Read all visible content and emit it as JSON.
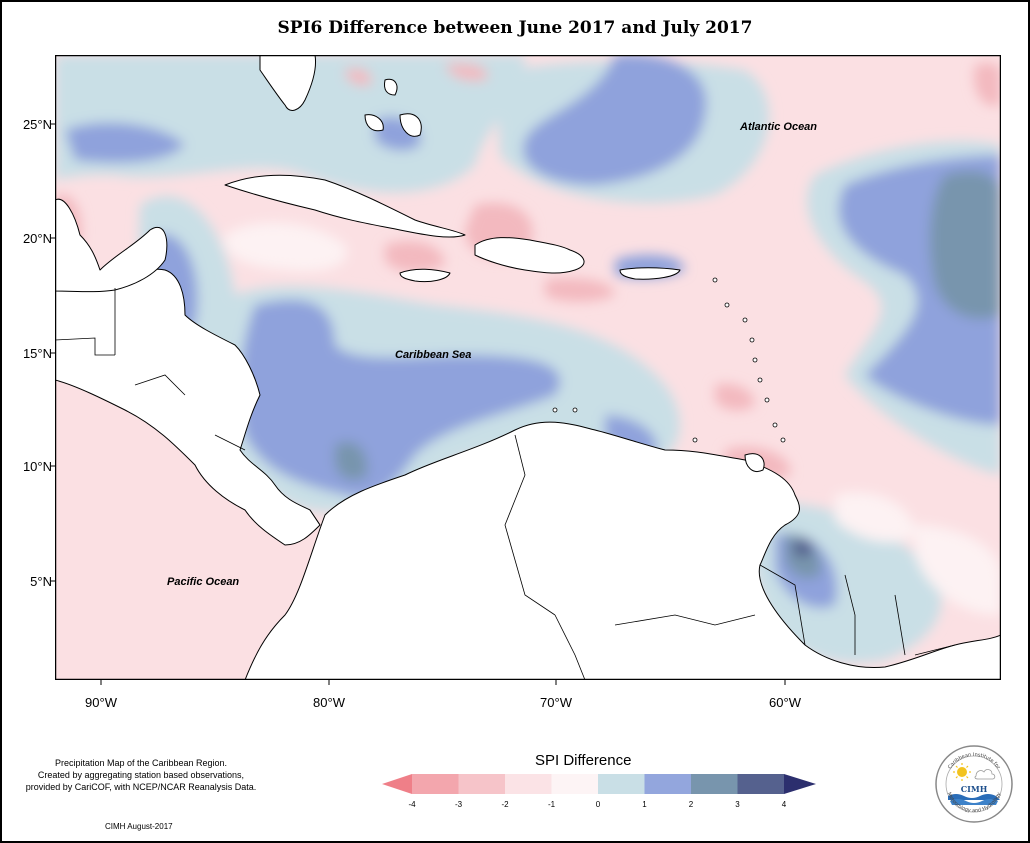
{
  "title": "SPI6 Difference between June 2017 and July 2017",
  "map": {
    "labels": {
      "atlantic": "Atlantic Ocean",
      "caribbean": "Caribbean Sea",
      "pacific": "Pacific Ocean"
    },
    "lat_ticks": [
      "25°N",
      "20°N",
      "15°N",
      "10°N",
      "5°N"
    ],
    "lon_ticks": [
      "90°W",
      "80°W",
      "70°W",
      "60°W"
    ],
    "colors": {
      "ocean_neg1": "#fbe0e3",
      "neg2": "#f3b9bf",
      "neg3": "#ef9aa3",
      "zero": "#fdf2f3",
      "pos1": "#c9dfe6",
      "pos2": "#8fa2dc",
      "pos3": "#7895ad",
      "pos4": "#55618e",
      "land": "#ffffff"
    }
  },
  "legend": {
    "title": "SPI Difference",
    "ticks": [
      "-4",
      "-3",
      "-2",
      "-1",
      "0",
      "1",
      "2",
      "3",
      "4"
    ],
    "colors": [
      "#ef7f88",
      "#f3a6ad",
      "#f6c4c9",
      "#fbe3e6",
      "#fdf4f5",
      "#c9dfe6",
      "#93a6dd",
      "#7895ad",
      "#55618e",
      "#2c2f6e"
    ]
  },
  "credit": {
    "line1": "Precipitation Map of the Caribbean Region.",
    "line2": "Created by aggregating station based observations,",
    "line3": "provided by CariCOF, with NCEP/NCAR Reanalysis Data.",
    "footer": "CIMH August-2017"
  },
  "logo": {
    "text": "CIMH",
    "ring_top": "Caribbean Institute for",
    "ring_bottom": "Meteorology and Hydrology"
  }
}
